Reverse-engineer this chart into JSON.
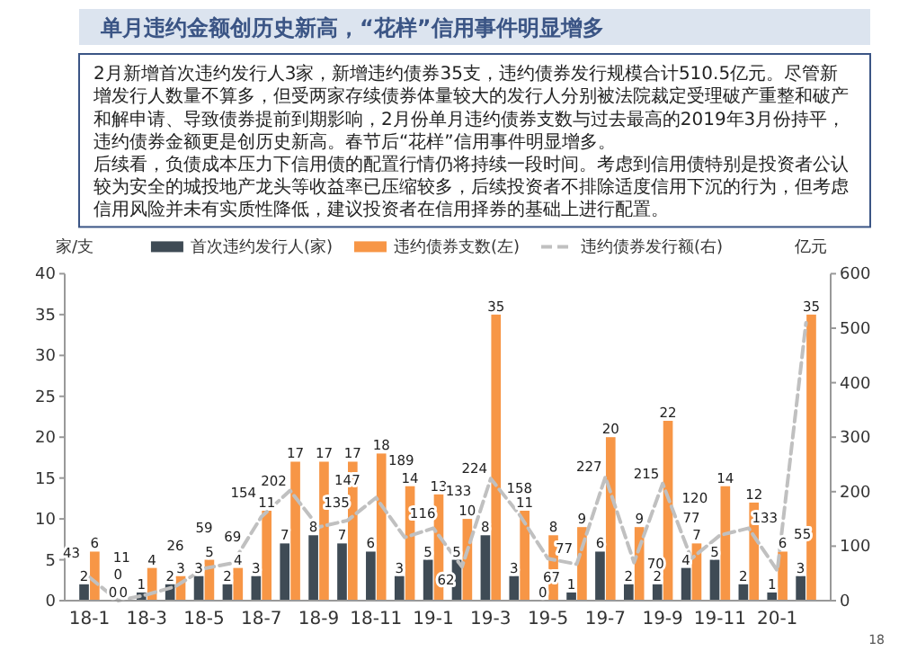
{
  "chart_data": {
    "type": "bar",
    "title": "单月违约金额创历史新高，“花样”信用事件明显增多",
    "annotations": [
      "2月新增首次违约发行人3家，新增违约债券35支，违约债券发行规模合计510.5亿元。尽管新增发行人数量不算多，但受两家存续债券体量较大的发行人分别被法院裁定受理破产重整和破产和解申请、导致债券提前到期影响，2月份单月违约债券支数与过去最高的2019年3月份持平，违约债券金额更是创历史新高。春节后“花样”信用事件明显增多。",
      "后续看，负债成本压力下信用债的配置行情仍将持续一段时间。考虑到信用债特别是投资者公认较为安全的城投地产龙头等收益率已压缩较多，后续投资者不排除适度信用下沉的行为，但考虑信用风险并未有实质性降低，建议投资者在信用择券的基础上进行配置。",
      "18"
    ],
    "ylabel": "家/支",
    "y2label": "亿元",
    "categories": [
      "18-1",
      null,
      "18-3",
      null,
      "18-5",
      null,
      "18-7",
      null,
      "18-9",
      null,
      "18-11",
      null,
      "19-1",
      null,
      "19-3",
      null,
      "19-5",
      null,
      "19-7",
      null,
      "19-9",
      null,
      "19-11",
      null,
      "20-1",
      null
    ],
    "series": [
      {
        "name": "首次违约发行人(家)",
        "color": "#3f4b55",
        "values": [
          2,
          0,
          1,
          2,
          3,
          2,
          3,
          7,
          8,
          7,
          6,
          3,
          5,
          5,
          8,
          3,
          0,
          1,
          6,
          2,
          2,
          4,
          5,
          2,
          1,
          3
        ],
        "value_labels": [
          "2",
          "0",
          "1",
          "2",
          "3",
          "2",
          "3",
          "7",
          "8",
          "7",
          "6",
          "3",
          "5",
          "5",
          "8",
          "3",
          "0",
          "1",
          "6",
          "2",
          "2",
          "4",
          "5",
          "2",
          "1",
          "3"
        ]
      },
      {
        "name": "违约债券支数(左)",
        "color": "#f79646",
        "values": [
          6,
          0,
          4,
          3,
          5,
          4,
          11,
          17,
          17,
          17,
          18,
          14,
          13,
          10,
          35,
          11,
          8,
          9,
          20,
          9,
          22,
          7,
          14,
          12,
          6,
          35
        ],
        "value_labels": [
          "6",
          "0",
          "4",
          "3",
          "5",
          "4",
          "11",
          "17",
          "17",
          "17",
          "18",
          "14",
          "13",
          "10",
          "35",
          "11",
          "8",
          "9",
          "20",
          "9",
          "22",
          "7",
          "14",
          "12",
          "6",
          "35"
        ]
      },
      {
        "name": "违约债券发行额(右)",
        "type": "line",
        "axis": "y2",
        "color": "#c0c0c0",
        "line_style": "dashed",
        "values": [
          43,
          0,
          11,
          26,
          59,
          69,
          154,
          202,
          135,
          147,
          189,
          116,
          133,
          62,
          224,
          158,
          77,
          67,
          227,
          70,
          215,
          77,
          120,
          133,
          55,
          510
        ],
        "value_labels": [
          "43",
          "0",
          "11",
          "26",
          "59",
          "69",
          "154",
          "202",
          "135",
          "147",
          "189",
          "116",
          "133",
          "62",
          "224",
          "158",
          "77",
          "67",
          "227",
          "70",
          "215",
          "77",
          "120",
          "133",
          "55",
          null
        ]
      }
    ],
    "ylim": [
      0,
      40
    ],
    "yticks": [
      0,
      5,
      10,
      15,
      20,
      25,
      30,
      35,
      40
    ],
    "y2lim": [
      0,
      600
    ],
    "y2ticks": [
      0,
      100,
      200,
      300,
      400,
      500,
      600
    ],
    "legend": "top"
  }
}
